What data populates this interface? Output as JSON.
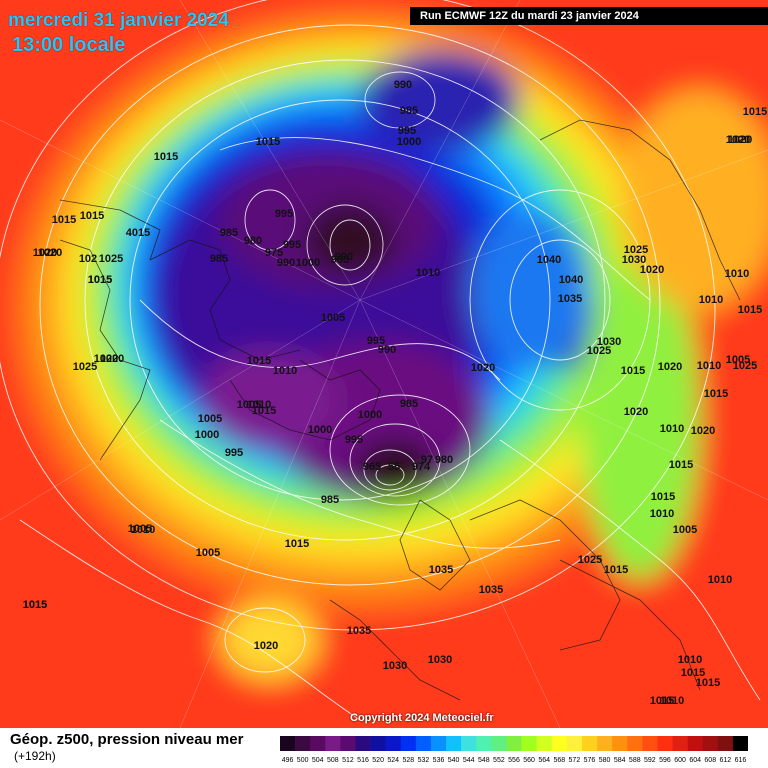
{
  "header": {
    "date": "mercredi 31 janvier 2024",
    "time": "13:00 locale",
    "run": "Run ECMWF 12Z du mardi 23 janvier 2024"
  },
  "copyright": "Copyright 2024 Meteociel.fr",
  "legend": {
    "title": "Géop. z500, pression niveau mer",
    "subtitle": "(+192h)",
    "scale_values": [
      "496",
      "500",
      "504",
      "508",
      "512",
      "516",
      "520",
      "524",
      "528",
      "532",
      "536",
      "540",
      "544",
      "548",
      "552",
      "556",
      "560",
      "564",
      "568",
      "572",
      "576",
      "580",
      "584",
      "588",
      "592",
      "596",
      "600",
      "604",
      "608",
      "612",
      "616"
    ],
    "scale_colors": [
      "#1a0520",
      "#3a0a40",
      "#5a0a60",
      "#7a1a88",
      "#5a0a70",
      "#2a0a80",
      "#1010a0",
      "#0a18c8",
      "#0030f0",
      "#0060ff",
      "#0a90ff",
      "#10c0ff",
      "#40e0e0",
      "#50f0b0",
      "#60f080",
      "#80f040",
      "#a0ff20",
      "#d0ff20",
      "#ffff20",
      "#fff040",
      "#ffd020",
      "#ffb020",
      "#ff9010",
      "#ff7010",
      "#ff5010",
      "#ff3010",
      "#e02010",
      "#c01010",
      "#a01010",
      "#801010",
      "#000000"
    ]
  },
  "pressure_labels": [
    {
      "text": "990"
    },
    {
      "text": "985"
    },
    {
      "text": "995"
    },
    {
      "text": "1000"
    },
    {
      "text": "1015"
    },
    {
      "text": "1015"
    },
    {
      "text": "1020"
    },
    {
      "text": "1015"
    },
    {
      "text": "995"
    },
    {
      "text": "985"
    },
    {
      "text": "980"
    },
    {
      "text": "975"
    },
    {
      "text": "990"
    },
    {
      "text": "995"
    },
    {
      "text": "1000"
    },
    {
      "text": "990"
    },
    {
      "text": "985"
    },
    {
      "text": "1010"
    },
    {
      "text": "1015"
    },
    {
      "text": "1015"
    },
    {
      "text": "4015"
    },
    {
      "text": "1020"
    },
    {
      "text": "102"
    },
    {
      "text": "1025"
    },
    {
      "text": "1015"
    },
    {
      "text": "985"
    },
    {
      "text": "1040"
    },
    {
      "text": "1040"
    },
    {
      "text": "1035"
    },
    {
      "text": "1025"
    },
    {
      "text": "1030"
    },
    {
      "text": "1020"
    },
    {
      "text": "1010"
    },
    {
      "text": "1010"
    },
    {
      "text": "1015"
    },
    {
      "text": "1005"
    },
    {
      "text": "995"
    },
    {
      "text": "990"
    },
    {
      "text": "1030"
    },
    {
      "text": "1025"
    },
    {
      "text": "1020"
    },
    {
      "text": "1020"
    },
    {
      "text": "1015"
    },
    {
      "text": "1010"
    },
    {
      "text": "1005"
    },
    {
      "text": "1025"
    },
    {
      "text": "1020"
    },
    {
      "text": "1015"
    },
    {
      "text": "1010"
    },
    {
      "text": "1005"
    },
    {
      "text": "1000"
    },
    {
      "text": "995"
    },
    {
      "text": "1020"
    },
    {
      "text": "1015"
    },
    {
      "text": "1010"
    },
    {
      "text": "1015"
    },
    {
      "text": "1005"
    },
    {
      "text": "1000"
    },
    {
      "text": "1000"
    },
    {
      "text": "985"
    },
    {
      "text": "995"
    },
    {
      "text": "980"
    },
    {
      "text": "97"
    },
    {
      "text": "965"
    },
    {
      "text": "55"
    },
    {
      "text": "974"
    },
    {
      "text": "1020"
    },
    {
      "text": "1025"
    },
    {
      "text": "1020"
    },
    {
      "text": "1010"
    },
    {
      "text": "1005"
    },
    {
      "text": "1015"
    },
    {
      "text": "1010"
    },
    {
      "text": "1015"
    },
    {
      "text": "1005"
    },
    {
      "text": "985"
    },
    {
      "text": "1010"
    },
    {
      "text": "1005"
    },
    {
      "text": "1015"
    },
    {
      "text": "1035"
    },
    {
      "text": "1035"
    },
    {
      "text": "1025"
    },
    {
      "text": "1015"
    },
    {
      "text": "1010"
    },
    {
      "text": "1015"
    },
    {
      "text": "1035"
    },
    {
      "text": "1020"
    },
    {
      "text": "1030"
    },
    {
      "text": "1030"
    },
    {
      "text": "1010"
    },
    {
      "text": "1015"
    },
    {
      "text": "1015"
    },
    {
      "text": "1015"
    },
    {
      "text": "1010"
    },
    {
      "text": "1015"
    },
    {
      "text": "1020"
    },
    {
      "text": "1015"
    },
    {
      "text": "1020"
    }
  ]
}
